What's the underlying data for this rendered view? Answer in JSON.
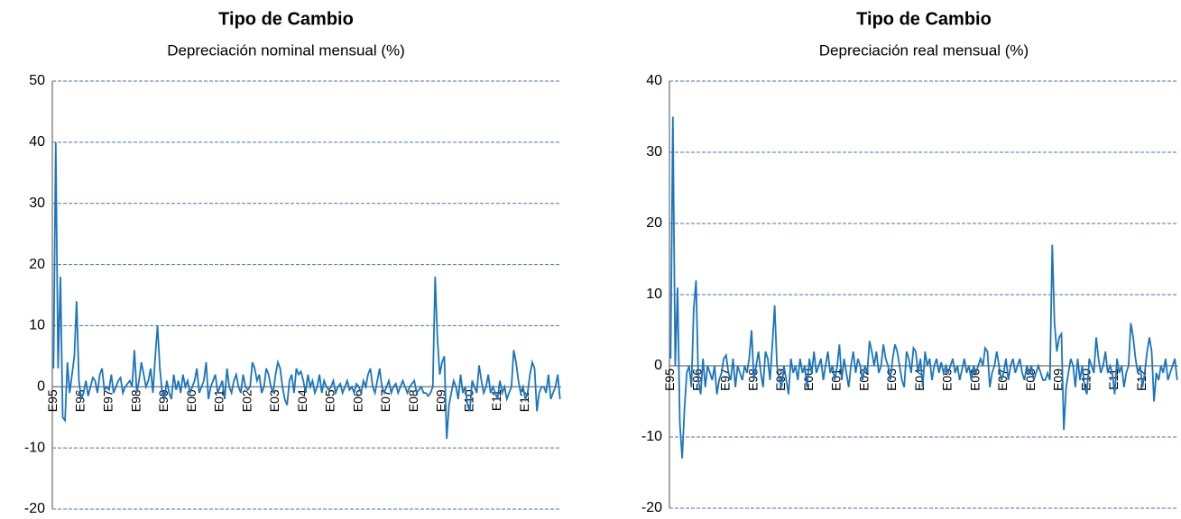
{
  "chart_data": [
    {
      "type": "line",
      "title": "Tipo de Cambio",
      "subtitle": "Depreciación nominal mensual (%)",
      "color": "#1c75bc",
      "ylim": [
        -20,
        50
      ],
      "yticks": [
        -20,
        -10,
        0,
        10,
        20,
        30,
        40,
        50
      ],
      "grid": true,
      "categories": [
        "E95",
        null,
        null,
        null,
        null,
        null,
        null,
        null,
        null,
        null,
        null,
        null,
        "E96",
        null,
        null,
        null,
        null,
        null,
        null,
        null,
        null,
        null,
        null,
        null,
        "E97",
        null,
        null,
        null,
        null,
        null,
        null,
        null,
        null,
        null,
        null,
        null,
        "E98",
        null,
        null,
        null,
        null,
        null,
        null,
        null,
        null,
        null,
        null,
        null,
        "E99",
        null,
        null,
        null,
        null,
        null,
        null,
        null,
        null,
        null,
        null,
        null,
        "E00",
        null,
        null,
        null,
        null,
        null,
        null,
        null,
        null,
        null,
        null,
        null,
        "E01",
        null,
        null,
        null,
        null,
        null,
        null,
        null,
        null,
        null,
        null,
        null,
        "E02",
        null,
        null,
        null,
        null,
        null,
        null,
        null,
        null,
        null,
        null,
        null,
        "E03",
        null,
        null,
        null,
        null,
        null,
        null,
        null,
        null,
        null,
        null,
        null,
        "E04",
        null,
        null,
        null,
        null,
        null,
        null,
        null,
        null,
        null,
        null,
        null,
        "E05",
        null,
        null,
        null,
        null,
        null,
        null,
        null,
        null,
        null,
        null,
        null,
        "E06",
        null,
        null,
        null,
        null,
        null,
        null,
        null,
        null,
        null,
        null,
        null,
        "E07",
        null,
        null,
        null,
        null,
        null,
        null,
        null,
        null,
        null,
        null,
        null,
        "E08",
        null,
        null,
        null,
        null,
        null,
        null,
        null,
        null,
        null,
        null,
        null,
        "E09",
        null,
        null,
        null,
        null,
        null,
        null,
        null,
        null,
        null,
        null,
        null,
        "E10",
        null,
        null,
        null,
        null,
        null,
        null,
        null,
        null,
        null,
        null,
        null,
        "E11",
        null,
        null,
        null,
        null,
        null,
        null,
        null,
        null,
        null,
        null,
        null,
        "E12",
        null,
        null,
        null,
        null,
        null,
        null,
        null,
        null,
        null,
        null,
        null,
        null,
        null,
        null,
        null
      ],
      "values": [
        3,
        40,
        3,
        18,
        -5,
        -5.5,
        4,
        -1,
        2,
        5,
        14,
        1,
        -2,
        -1,
        1,
        -1.5,
        0,
        1.5,
        1,
        -1,
        2,
        3,
        -0.5,
        0,
        -0.5,
        2,
        -1,
        0,
        1,
        1.5,
        -1,
        0,
        0.5,
        1,
        0,
        6,
        -1,
        1,
        4,
        2,
        0,
        1,
        3,
        -1,
        5,
        10,
        3,
        -1,
        -2,
        1,
        -1,
        -2,
        2,
        -0.5,
        1,
        -1,
        2,
        0,
        1,
        -1,
        0,
        1,
        3,
        -1,
        0,
        1,
        4,
        -2,
        0,
        1,
        2,
        -1,
        0,
        1,
        -2,
        3,
        0,
        -1,
        1,
        2,
        0,
        -1,
        2,
        0,
        -0.5,
        0,
        4,
        3,
        1,
        2,
        -1,
        0,
        3,
        2,
        0,
        -1,
        2,
        4,
        3,
        0,
        -2,
        -3,
        1,
        2,
        -1,
        3,
        2,
        2.5,
        1,
        -1,
        2,
        0,
        1,
        -1,
        0,
        2,
        -1,
        1,
        0,
        -0.5,
        0,
        1,
        -1,
        0,
        0.5,
        -1,
        0,
        1,
        -0.5,
        0,
        -1,
        0.5,
        0,
        -1,
        1,
        0,
        2,
        3,
        0,
        -1,
        1,
        3,
        0,
        -1,
        0,
        1,
        -1,
        0,
        0.5,
        -1,
        0,
        1,
        0,
        -1,
        0,
        0.5,
        1,
        -1,
        -0.5,
        0,
        -1,
        -1,
        -1.5,
        -1,
        0,
        18,
        8,
        2,
        4,
        5,
        -8.5,
        -3,
        -1,
        1,
        0,
        -2,
        2,
        -1,
        0,
        -3,
        -4,
        1,
        0,
        -1,
        3.5,
        1,
        -1,
        0,
        2,
        -1,
        0,
        -1,
        -2,
        1,
        -1,
        0,
        -2,
        -1,
        0,
        6,
        4,
        1,
        -1,
        0,
        -2,
        -1,
        2,
        4,
        3,
        -4,
        -1,
        0,
        0,
        -1,
        2,
        -2,
        -1,
        0,
        2,
        -2
      ]
    },
    {
      "type": "line",
      "title": "Tipo de Cambio",
      "subtitle": "Depreciación real mensual (%)",
      "color": "#1c75bc",
      "ylim": [
        -20,
        40
      ],
      "yticks": [
        -20,
        -10,
        0,
        10,
        20,
        30,
        40
      ],
      "grid": true,
      "categories": [
        "E95",
        null,
        null,
        null,
        null,
        null,
        null,
        null,
        null,
        null,
        null,
        null,
        "E96",
        null,
        null,
        null,
        null,
        null,
        null,
        null,
        null,
        null,
        null,
        null,
        "E97",
        null,
        null,
        null,
        null,
        null,
        null,
        null,
        null,
        null,
        null,
        null,
        "E98",
        null,
        null,
        null,
        null,
        null,
        null,
        null,
        null,
        null,
        null,
        null,
        "E99",
        null,
        null,
        null,
        null,
        null,
        null,
        null,
        null,
        null,
        null,
        null,
        "E00",
        null,
        null,
        null,
        null,
        null,
        null,
        null,
        null,
        null,
        null,
        null,
        "E01",
        null,
        null,
        null,
        null,
        null,
        null,
        null,
        null,
        null,
        null,
        null,
        "E02",
        null,
        null,
        null,
        null,
        null,
        null,
        null,
        null,
        null,
        null,
        null,
        "E03",
        null,
        null,
        null,
        null,
        null,
        null,
        null,
        null,
        null,
        null,
        null,
        "E04",
        null,
        null,
        null,
        null,
        null,
        null,
        null,
        null,
        null,
        null,
        null,
        "E05",
        null,
        null,
        null,
        null,
        null,
        null,
        null,
        null,
        null,
        null,
        null,
        "E06",
        null,
        null,
        null,
        null,
        null,
        null,
        null,
        null,
        null,
        null,
        null,
        "E07",
        null,
        null,
        null,
        null,
        null,
        null,
        null,
        null,
        null,
        null,
        null,
        "E08",
        null,
        null,
        null,
        null,
        null,
        null,
        null,
        null,
        null,
        null,
        null,
        "E09",
        null,
        null,
        null,
        null,
        null,
        null,
        null,
        null,
        null,
        null,
        null,
        "E10",
        null,
        null,
        null,
        null,
        null,
        null,
        null,
        null,
        null,
        null,
        null,
        "E11",
        null,
        null,
        null,
        null,
        null,
        null,
        null,
        null,
        null,
        null,
        null,
        "E12",
        null,
        null,
        null,
        null,
        null,
        null,
        null,
        null,
        null,
        null,
        null,
        null,
        null,
        null,
        null
      ],
      "values": [
        1,
        35,
        0,
        11,
        -8,
        -13,
        -6,
        -1,
        0,
        -3,
        8,
        12,
        -2,
        -4,
        1,
        -3,
        0,
        -1,
        -2,
        0,
        -4,
        -2,
        -1,
        1,
        1.5,
        -1,
        -2,
        1,
        -3,
        0,
        -1,
        -2,
        0,
        -1,
        1,
        5,
        -2,
        0,
        2,
        -1,
        -3,
        2,
        1,
        -2,
        3,
        8.5,
        0,
        -2,
        -3,
        0,
        -2,
        -4,
        1,
        -1,
        0,
        -2,
        1,
        -1,
        0,
        -3,
        1,
        -1,
        2,
        -1,
        0,
        1,
        -2,
        0,
        2,
        -1,
        0,
        -2,
        0,
        3,
        -2,
        1,
        -1,
        -3,
        0,
        2,
        -1,
        1,
        0,
        -2,
        0,
        -1,
        3.5,
        2,
        0,
        2,
        -1,
        0,
        3,
        1,
        0,
        -2,
        1,
        3,
        2,
        0,
        -2,
        -3,
        2,
        1,
        -1,
        2.5,
        2,
        -1,
        1,
        -3,
        2,
        0,
        1,
        -2,
        0,
        1,
        -1,
        0.5,
        -1,
        0,
        -1,
        0,
        1,
        -1,
        0,
        -2,
        -0.5,
        1,
        -1,
        0,
        -2,
        0,
        -1,
        0,
        1,
        0,
        2.5,
        2,
        -3,
        -1,
        0,
        2,
        0,
        -2,
        -1,
        1,
        -2,
        0,
        1,
        -1,
        0,
        1,
        -1,
        -2,
        0,
        -1,
        0,
        -2,
        -1,
        0,
        -1,
        -2,
        -2,
        -1,
        -2,
        17,
        6,
        2,
        4,
        4.5,
        -9,
        -3,
        -1,
        1,
        0,
        -3,
        1,
        -2,
        0,
        -3,
        -4,
        1,
        0,
        -1,
        4,
        1,
        -1,
        0,
        2,
        -1,
        0,
        -1,
        -4,
        1,
        -1,
        0,
        -3,
        -1,
        0,
        6,
        4,
        1,
        -1,
        0,
        -3,
        -1,
        2,
        4,
        2,
        -5,
        -1,
        -2,
        0,
        -1,
        1,
        -2,
        -1,
        0,
        1,
        -2
      ]
    }
  ]
}
